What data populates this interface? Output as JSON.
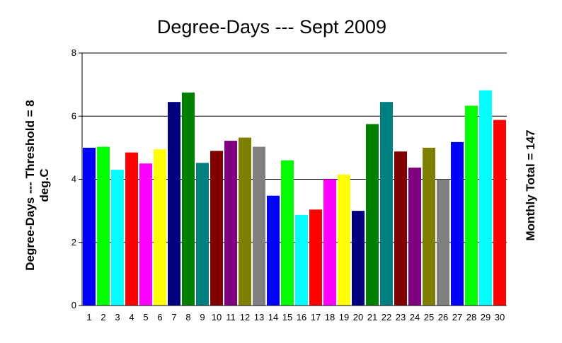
{
  "chart_data": {
    "type": "bar",
    "title": "Degree-Days --- Sept 2009",
    "ylabel_line1": "Degree-Days --- Threshold = 8",
    "ylabel_line2": "deg.C",
    "right_label": "Monthly Total = 147",
    "ylim": [
      0,
      8
    ],
    "yticks": [
      "0",
      "2",
      "4",
      "6",
      "8"
    ],
    "categories": [
      "1",
      "2",
      "3",
      "4",
      "5",
      "6",
      "7",
      "8",
      "9",
      "10",
      "11",
      "12",
      "13",
      "14",
      "15",
      "16",
      "17",
      "18",
      "19",
      "20",
      "21",
      "22",
      "23",
      "24",
      "25",
      "26",
      "27",
      "28",
      "29",
      "30"
    ],
    "values": [
      5.0,
      5.03,
      4.3,
      4.85,
      4.5,
      4.95,
      6.45,
      6.75,
      4.52,
      4.9,
      5.22,
      5.32,
      5.03,
      3.48,
      4.6,
      2.87,
      3.04,
      4.0,
      4.15,
      3.0,
      5.75,
      6.45,
      4.88,
      4.37,
      5.0,
      4.0,
      5.18,
      6.33,
      6.82,
      5.88
    ],
    "colors": [
      "#0000FF",
      "#00FF00",
      "#00FFFF",
      "#FF0000",
      "#FF00FF",
      "#FFFF00",
      "#000080",
      "#008000",
      "#008080",
      "#800000",
      "#800080",
      "#808000",
      "#808080",
      "#0000FF",
      "#00FF00",
      "#00FFFF",
      "#FF0000",
      "#FF00FF",
      "#FFFF00",
      "#000080",
      "#008000",
      "#008080",
      "#800000",
      "#800080",
      "#808000",
      "#808080",
      "#0000FF",
      "#00FF00",
      "#00FFFF",
      "#FF0000"
    ],
    "grid": true
  }
}
